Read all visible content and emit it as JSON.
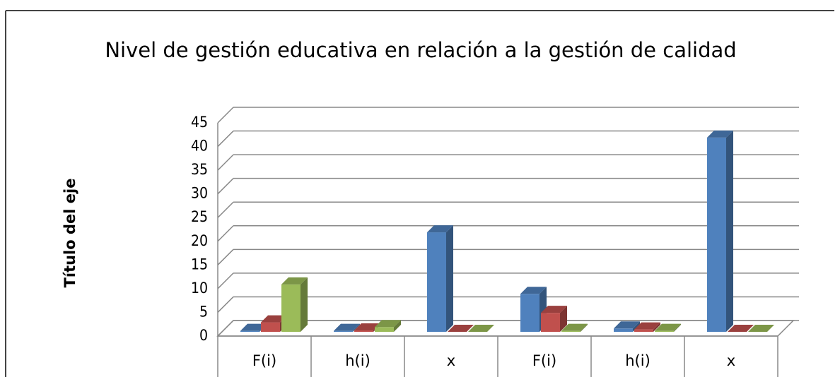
{
  "chart_data": {
    "type": "bar3d",
    "title": "Nivel de gestión educativa en relación a la gestión de calidad",
    "y_label": "Título del eje",
    "categories": [
      "F(i)",
      "h(i)",
      "x",
      "F(i)",
      "h(i)",
      "x"
    ],
    "series": [
      {
        "color": "#4f81bd",
        "values": [
          0.2,
          0.2,
          21,
          8,
          0.7,
          41
        ]
      },
      {
        "color": "#c0504d",
        "values": [
          2,
          0.3,
          0,
          4,
          0.5,
          0
        ]
      },
      {
        "color": "#9bbb59",
        "values": [
          10,
          1,
          0,
          0.2,
          0.2,
          0
        ]
      }
    ],
    "ylim": [
      0,
      45
    ],
    "yticks": [
      0,
      5,
      10,
      15,
      20,
      25,
      30,
      35,
      40,
      45
    ],
    "grid": true
  }
}
